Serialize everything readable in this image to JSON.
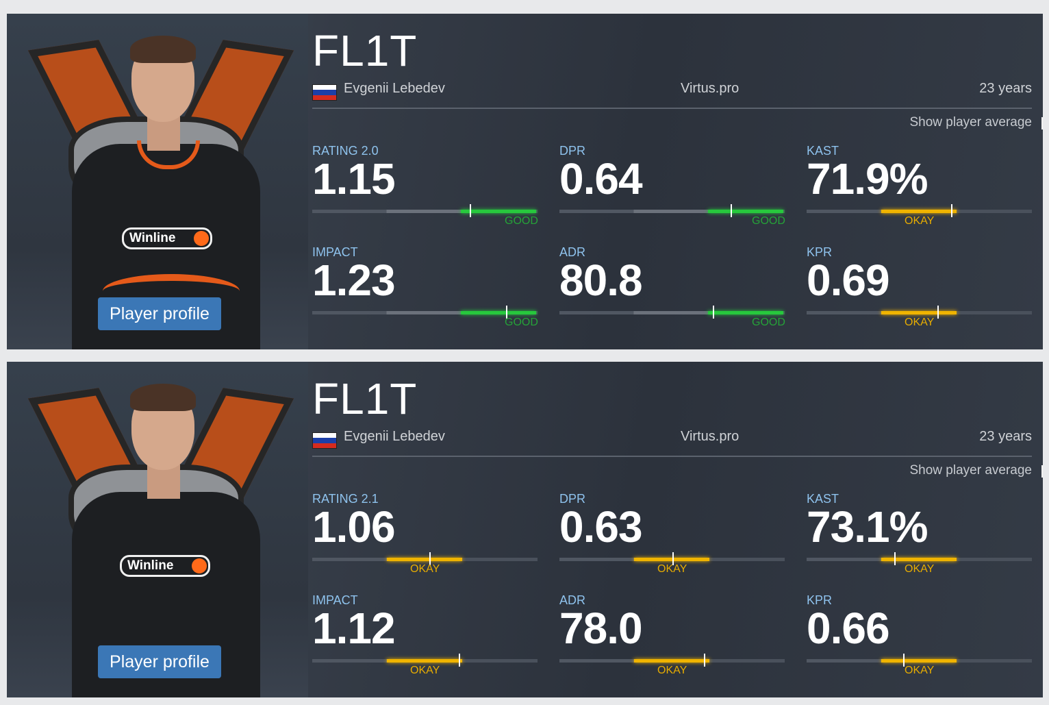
{
  "cards": [
    {
      "nickname": "FL1T",
      "real_name": "Evgenii Lebedev",
      "team": "Virtus.pro",
      "age": "23 years",
      "show_average_label": "Show player average",
      "profile_button": "Player profile",
      "shirt_sponsor": "Winline",
      "stats": [
        {
          "label": "RATING 2.0",
          "value": "1.15",
          "rating": "GOOD",
          "level": 0.7
        },
        {
          "label": "DPR",
          "value": "0.64",
          "rating": "GOOD",
          "level": 0.76
        },
        {
          "label": "KAST",
          "value": "71.9%",
          "rating": "OKAY",
          "level": 0.64
        },
        {
          "label": "IMPACT",
          "value": "1.23",
          "rating": "GOOD",
          "level": 0.86
        },
        {
          "label": "ADR",
          "value": "80.8",
          "rating": "GOOD",
          "level": 0.68
        },
        {
          "label": "KPR",
          "value": "0.69",
          "rating": "OKAY",
          "level": 0.58
        }
      ]
    },
    {
      "nickname": "FL1T",
      "real_name": "Evgenii Lebedev",
      "team": "Virtus.pro",
      "age": "23 years",
      "show_average_label": "Show player average",
      "profile_button": "Player profile",
      "shirt_sponsor": "Winline",
      "stats": [
        {
          "label": "RATING 2.1",
          "value": "1.06",
          "rating": "OKAY",
          "level": 0.52
        },
        {
          "label": "DPR",
          "value": "0.63",
          "rating": "OKAY",
          "level": 0.5
        },
        {
          "label": "KAST",
          "value": "73.1%",
          "rating": "OKAY",
          "level": 0.39
        },
        {
          "label": "IMPACT",
          "value": "1.12",
          "rating": "OKAY",
          "level": 0.65
        },
        {
          "label": "ADR",
          "value": "78.0",
          "rating": "OKAY",
          "level": 0.64
        },
        {
          "label": "KPR",
          "value": "0.66",
          "rating": "OKAY",
          "level": 0.43
        }
      ]
    }
  ],
  "colors": {
    "good": "#27c83d",
    "okay": "#f0b400",
    "label": "#8fc3ee",
    "button": "#3b77b6",
    "accent_orange": "#e55a1a"
  }
}
